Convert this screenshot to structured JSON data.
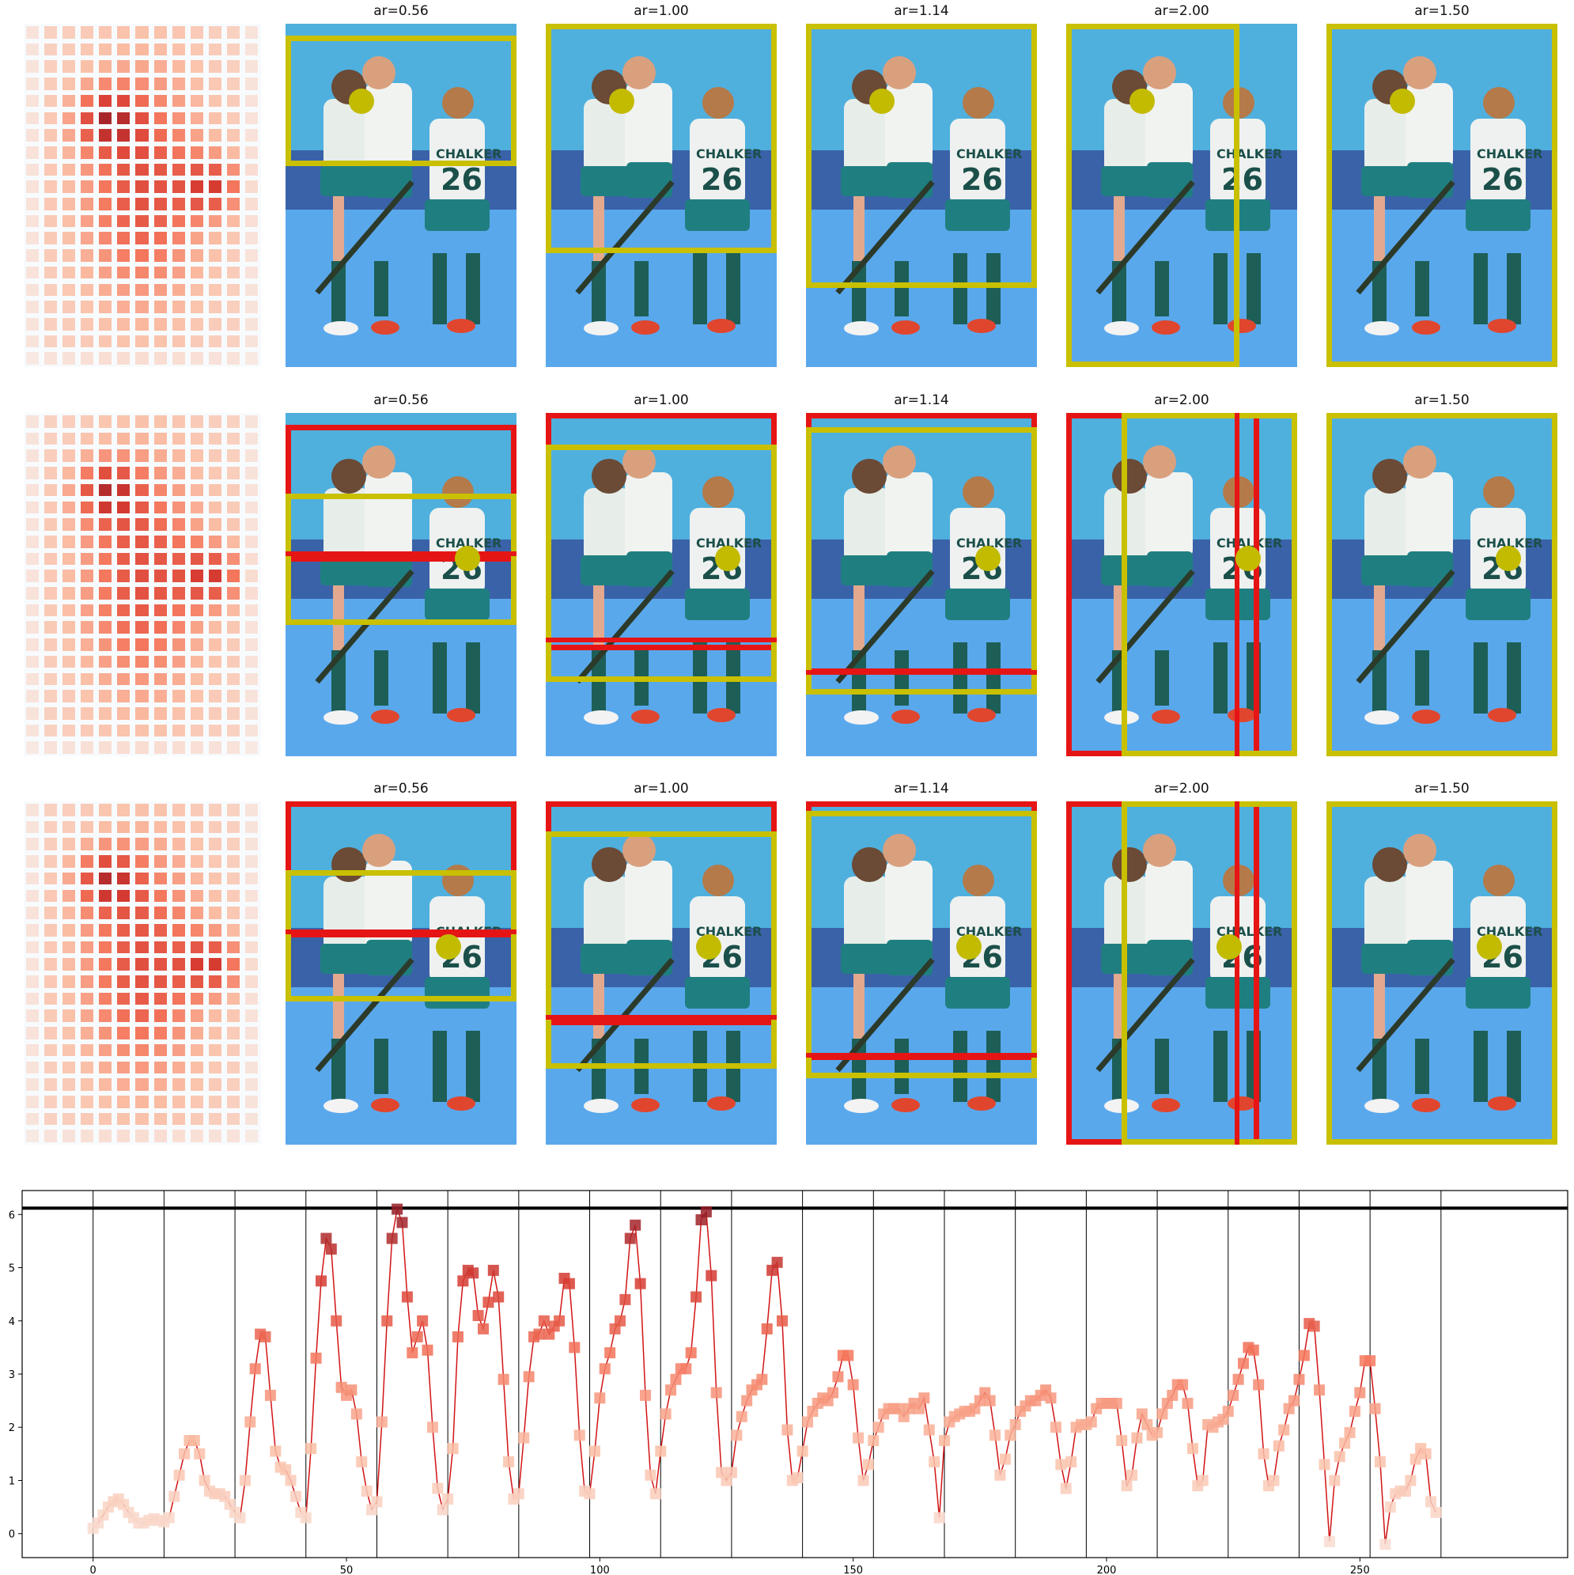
{
  "rows": [
    {
      "panels": [
        {
          "title": "ar=0.56"
        },
        {
          "title": "ar=1.00"
        },
        {
          "title": "ar=1.14"
        },
        {
          "title": "ar=2.00"
        },
        {
          "title": "ar=1.50"
        }
      ]
    },
    {
      "panels": [
        {
          "title": "ar=0.56"
        },
        {
          "title": "ar=1.00"
        },
        {
          "title": "ar=1.14"
        },
        {
          "title": "ar=2.00"
        },
        {
          "title": "ar=1.50"
        }
      ]
    },
    {
      "panels": [
        {
          "title": "ar=0.56"
        },
        {
          "title": "ar=1.00"
        },
        {
          "title": "ar=1.14"
        },
        {
          "title": "ar=2.00"
        },
        {
          "title": "ar=1.50"
        }
      ]
    }
  ],
  "photo": {
    "jersey_text": "CHALKER",
    "jersey_number": "26"
  },
  "colors": {
    "crop_box": "#c8c000",
    "red_box": "#e61515",
    "dot": "#c2bb00",
    "line": "#d21414"
  },
  "chart_data": {
    "type": "line",
    "title": "",
    "xlabel": "",
    "ylabel": "",
    "xlim": [
      -14,
      291
    ],
    "ylim": [
      -0.45,
      6.45
    ],
    "xticks": [
      0,
      50,
      100,
      150,
      200,
      250
    ],
    "yticks": [
      0,
      1,
      2,
      3,
      4,
      5,
      6
    ],
    "grid": false,
    "threshold": 6.12,
    "vlines": [
      0,
      14,
      28,
      42,
      56,
      70,
      84,
      98,
      112,
      126,
      140,
      154,
      168,
      182,
      196,
      210,
      224,
      238,
      252,
      266
    ],
    "series": [
      {
        "values": [
          0.1,
          0.2,
          0.35,
          0.5,
          0.6,
          0.65,
          0.55,
          0.4,
          0.3,
          0.2,
          0.2,
          0.25,
          0.28,
          0.25,
          0.22,
          0.3,
          0.7,
          1.1,
          1.5,
          1.75,
          1.75,
          1.5,
          1.0,
          0.8,
          0.75,
          0.75,
          0.7,
          0.55,
          0.4,
          0.3,
          1.0,
          2.1,
          3.1,
          3.75,
          3.7,
          2.6,
          1.55,
          1.25,
          1.2,
          1.0,
          0.7,
          0.4,
          0.3,
          1.6,
          3.3,
          4.75,
          5.55,
          5.35,
          4.0,
          2.75,
          2.6,
          2.7,
          2.25,
          1.35,
          0.8,
          0.45,
          0.6,
          2.1,
          4.0,
          5.55,
          6.1,
          5.85,
          4.45,
          3.4,
          3.7,
          4.0,
          3.45,
          2.0,
          0.85,
          0.45,
          0.65,
          1.6,
          3.7,
          4.75,
          4.95,
          4.9,
          4.1,
          3.85,
          4.35,
          4.95,
          4.45,
          2.9,
          1.35,
          0.65,
          0.75,
          1.8,
          2.95,
          3.7,
          3.75,
          4.0,
          3.75,
          3.9,
          4.0,
          4.8,
          4.7,
          3.5,
          1.85,
          0.8,
          0.75,
          1.55,
          2.55,
          3.1,
          3.4,
          3.85,
          4.0,
          4.4,
          5.55,
          5.8,
          4.7,
          2.6,
          1.1,
          0.75,
          1.55,
          2.25,
          2.7,
          2.9,
          3.1,
          3.1,
          3.4,
          4.45,
          5.9,
          6.05,
          4.85,
          2.65,
          1.15,
          1.0,
          1.15,
          1.85,
          2.2,
          2.5,
          2.7,
          2.8,
          2.9,
          3.85,
          4.95,
          5.1,
          4.0,
          1.95,
          1.0,
          1.05,
          1.55,
          2.1,
          2.3,
          2.45,
          2.55,
          2.5,
          2.65,
          2.95,
          3.35,
          3.35,
          2.8,
          1.8,
          1.0,
          1.3,
          1.75,
          2.0,
          2.25,
          2.35,
          2.35,
          2.35,
          2.2,
          2.35,
          2.45,
          2.35,
          2.55,
          1.95,
          1.35,
          0.3,
          1.75,
          2.1,
          2.2,
          2.25,
          2.3,
          2.3,
          2.35,
          2.5,
          2.65,
          2.5,
          1.85,
          1.1,
          1.4,
          1.85,
          2.05,
          2.3,
          2.4,
          2.5,
          2.5,
          2.6,
          2.7,
          2.55,
          2.0,
          1.3,
          0.85,
          1.35,
          2.0,
          2.05,
          2.05,
          2.1,
          2.35,
          2.45,
          2.45,
          2.45,
          2.45,
          1.75,
          0.9,
          1.1,
          1.8,
          2.25,
          2.05,
          1.85,
          1.9,
          2.25,
          2.45,
          2.6,
          2.8,
          2.8,
          2.45,
          1.6,
          0.9,
          1.0,
          2.05,
          2.0,
          2.1,
          2.15,
          2.3,
          2.6,
          2.9,
          3.2,
          3.5,
          3.45,
          2.8,
          1.5,
          0.9,
          1.0,
          1.65,
          1.95,
          2.35,
          2.5,
          2.9,
          3.35,
          3.95,
          3.9,
          2.7,
          1.3,
          -0.15,
          1.0,
          1.45,
          1.7,
          1.9,
          2.3,
          2.65,
          3.25,
          3.25,
          2.35,
          1.35,
          -0.2,
          0.5,
          0.75,
          0.8,
          0.8,
          1.0,
          1.4,
          1.6,
          1.5,
          0.6,
          0.4
        ]
      }
    ]
  }
}
